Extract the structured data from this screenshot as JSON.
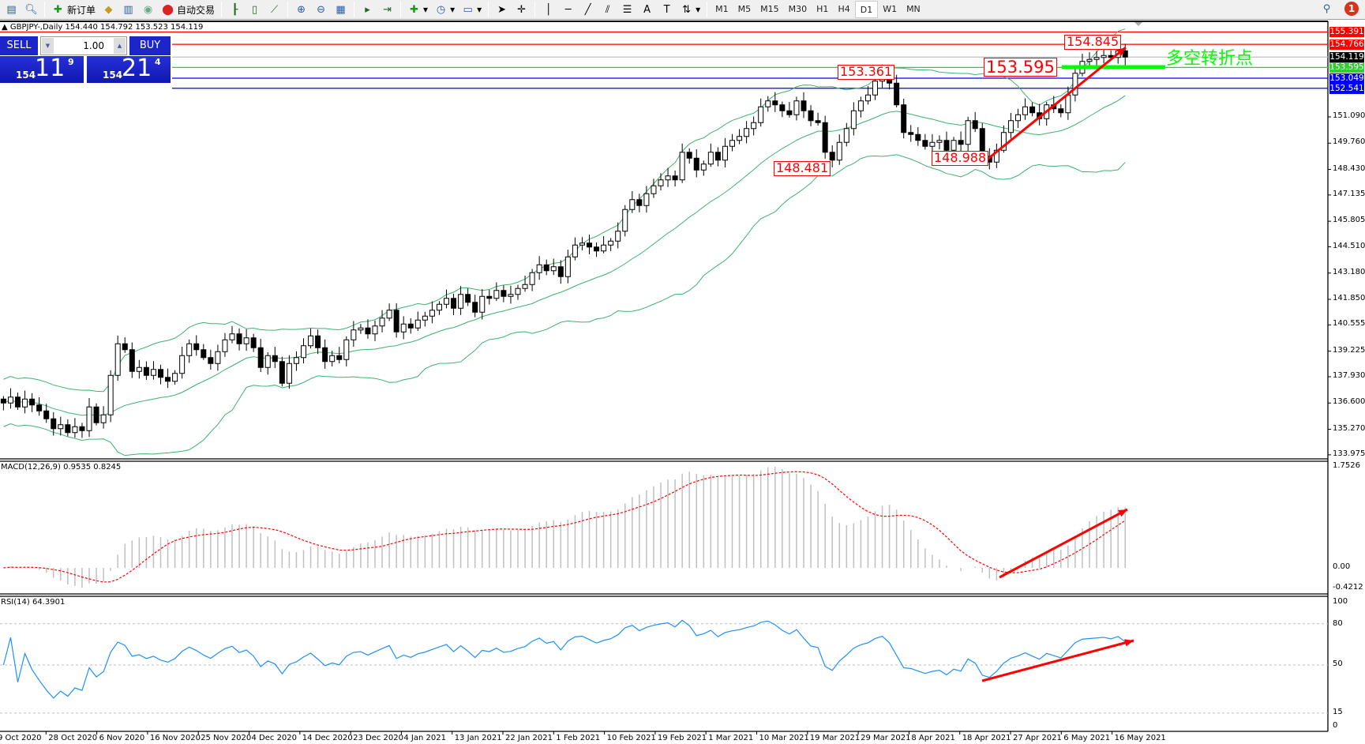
{
  "toolbar": {
    "new_order": "新订单",
    "auto_trading": "自动交易",
    "timeframes": [
      "M1",
      "M5",
      "M15",
      "M30",
      "H1",
      "H4",
      "D1",
      "W1",
      "MN"
    ],
    "active_timeframe": "D1",
    "notifications": "1"
  },
  "chart": {
    "title": "GBPJPY-,Daily  154.440 154.792 153.523 154.119",
    "symbol": "GBPJPY-",
    "period": "Daily",
    "last_bar": {
      "open": 154.44,
      "high": 154.792,
      "low": 153.523,
      "close": 154.119
    }
  },
  "trade_panel": {
    "sell": "SELL",
    "buy": "BUY",
    "lot": "1.00",
    "bid": {
      "big": "154",
      "main": "11",
      "small": "9"
    },
    "ask": {
      "big": "154",
      "main": "21",
      "small": "4"
    }
  },
  "price_axis": {
    "ticks": [
      "151.090",
      "149.760",
      "148.430",
      "147.135",
      "145.805",
      "144.510",
      "143.180",
      "141.850",
      "140.555",
      "139.225",
      "137.930",
      "136.600",
      "135.270",
      "133.975"
    ]
  },
  "price_lines": [
    {
      "value": "155.391",
      "color": "#ff0000"
    },
    {
      "value": "154.766",
      "color": "#ff0000"
    },
    {
      "value": "154.119",
      "color": "#000000",
      "line": "#c0c0c0"
    },
    {
      "value": "153.595",
      "color": "#32cd32"
    },
    {
      "value": "153.049",
      "color": "#0000ff"
    },
    {
      "value": "152.541",
      "color": "#0000ff"
    }
  ],
  "annotations": {
    "a1": "153.361",
    "a2": "148.481",
    "a3": "148.988",
    "a4": "153.595",
    "a5": "154.845",
    "pivot_text": "多空转折点"
  },
  "macd": {
    "label": "MACD(12,26,9) 0.9535 0.8245",
    "axis": [
      "1.7526",
      "0.00",
      "-0.4212"
    ],
    "max": 1.7526,
    "min": -0.4212
  },
  "rsi": {
    "label": "RSI(14) 64.3901",
    "axis": [
      "100",
      "80",
      "50",
      "15",
      "0"
    ],
    "levels": [
      80,
      50,
      15
    ]
  },
  "dates": [
    "9 Oct 2020",
    "28 Oct 2020",
    "6 Nov 2020",
    "16 Nov 2020",
    "25 Nov 2020",
    "4 Dec 2020",
    "14 Dec 2020",
    "23 Dec 2020",
    "4 Jan 2021",
    "13 Jan 2021",
    "22 Jan 2021",
    "1 Feb 2021",
    "10 Feb 2021",
    "19 Feb 2021",
    "1 Mar 2021",
    "10 Mar 2021",
    "19 Mar 2021",
    "29 Mar 2021",
    "8 Apr 2021",
    "18 Apr 2021",
    "27 Apr 2021",
    "6 May 2021",
    "16 May 2021"
  ],
  "colors": {
    "bands": "#3cb371",
    "signal": "#ff0000",
    "histogram": "#c0c0c0",
    "rsi": "#1e90ff",
    "arrow": "#ff0000",
    "pivot": "#00ff00"
  },
  "chart_data": {
    "type": "candlestick",
    "closes": [
      136.6,
      136.9,
      136.4,
      136.8,
      136.5,
      136.2,
      135.8,
      135.3,
      135.5,
      135.1,
      135.4,
      135.2,
      136.4,
      135.6,
      136.0,
      138.0,
      139.6,
      139.3,
      138.2,
      138.4,
      138.0,
      138.3,
      137.9,
      137.7,
      138.1,
      139.0,
      139.6,
      139.3,
      138.9,
      138.6,
      139.2,
      139.8,
      140.1,
      139.6,
      139.9,
      139.4,
      138.4,
      139.0,
      138.7,
      137.6,
      138.6,
      138.9,
      139.5,
      140.0,
      139.4,
      138.7,
      139.0,
      138.8,
      139.8,
      140.3,
      140.4,
      140.1,
      140.5,
      140.9,
      141.3,
      140.2,
      140.6,
      140.4,
      140.8,
      141.0,
      141.3,
      141.6,
      141.9,
      141.4,
      142.1,
      141.7,
      141.2,
      142.0,
      141.9,
      142.3,
      142.0,
      142.1,
      142.4,
      142.6,
      143.2,
      143.6,
      143.3,
      143.5,
      143.0,
      144.0,
      144.6,
      144.7,
      144.5,
      144.3,
      144.6,
      144.8,
      145.3,
      146.4,
      146.9,
      146.6,
      147.2,
      147.6,
      147.9,
      148.1,
      147.9,
      149.3,
      149.0,
      148.4,
      148.7,
      149.3,
      148.9,
      149.6,
      149.9,
      150.1,
      150.5,
      150.8,
      151.6,
      151.9,
      151.7,
      151.4,
      151.2,
      151.9,
      151.4,
      150.9,
      150.8,
      149.3,
      148.9,
      149.8,
      150.5,
      151.4,
      151.9,
      152.2,
      152.9,
      153.3,
      152.8,
      151.7,
      150.3,
      150.2,
      149.9,
      149.6,
      149.8,
      149.9,
      149.4,
      149.9,
      149.7,
      150.9,
      150.5,
      149.1,
      148.8,
      149.4,
      150.3,
      150.9,
      151.2,
      151.6,
      151.3,
      151.0,
      151.7,
      151.5,
      151.3,
      152.2,
      153.3,
      153.9,
      154.0,
      154.1,
      154.2,
      154.1,
      154.44,
      154.119
    ],
    "ylim": [
      133.975,
      155.391
    ]
  }
}
